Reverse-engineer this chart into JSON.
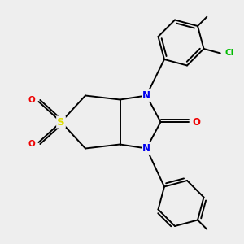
{
  "bg_color": "#eeeeee",
  "atom_colors": {
    "C": "#000000",
    "N": "#0000ee",
    "O": "#ee0000",
    "S": "#dddd00",
    "Cl": "#00bb00"
  },
  "bond_color": "#000000",
  "bond_width": 1.4,
  "font_size_atoms": 8.5
}
